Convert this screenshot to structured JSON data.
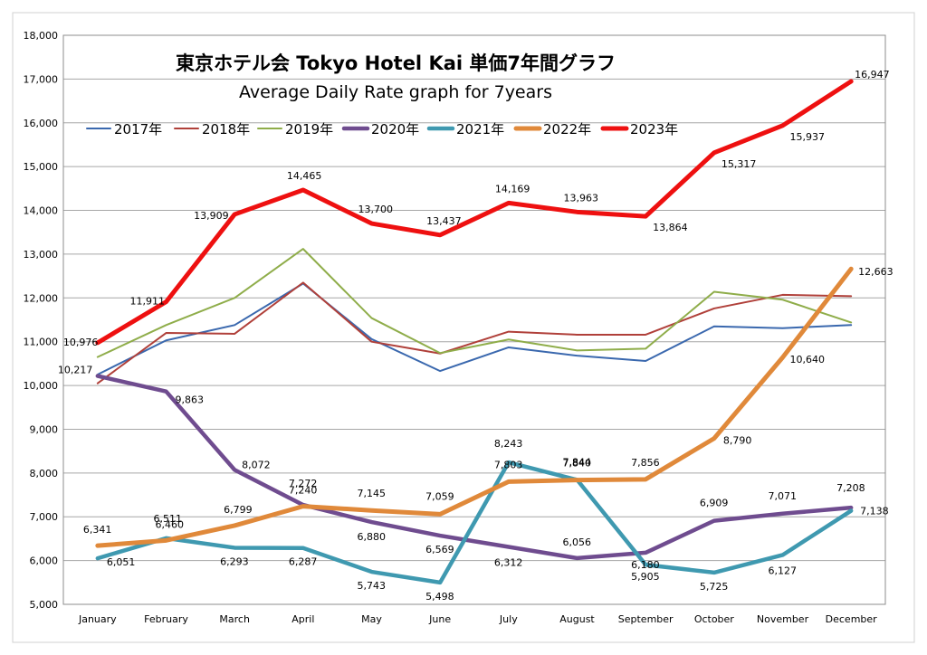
{
  "chart_data": {
    "type": "line",
    "title": "東京ホテル会 Tokyo Hotel Kai 単価7年間グラフ",
    "subtitle": "Average Daily Rate graph for 7years",
    "xlabel": "",
    "ylabel": "",
    "ylim": [
      5000,
      18000
    ],
    "ytick_step": 1000,
    "grid": true,
    "legend_position": "top",
    "categories": [
      "January",
      "February",
      "March",
      "April",
      "May",
      "June",
      "July",
      "August",
      "September",
      "October",
      "November",
      "December"
    ],
    "series": [
      {
        "name": "2017年",
        "color": "#3a68ae",
        "values": [
          10250,
          11030,
          11380,
          12330,
          11060,
          10330,
          10870,
          10680,
          10560,
          11350,
          11310,
          11380
        ]
      },
      {
        "name": "2018年",
        "color": "#b0403a",
        "values": [
          10050,
          11200,
          11180,
          12350,
          11000,
          10730,
          11230,
          11160,
          11160,
          11760,
          12070,
          12040
        ]
      },
      {
        "name": "2019年",
        "color": "#8fad4a",
        "values": [
          10650,
          11380,
          12000,
          13120,
          11540,
          10740,
          11050,
          10800,
          10840,
          12140,
          11960,
          11440
        ]
      },
      {
        "name": "2020年",
        "color": "#6f4c8f",
        "values": [
          10217,
          9863,
          8072,
          7272,
          6880,
          6569,
          6312,
          6056,
          6180,
          6909,
          7071,
          7208
        ]
      },
      {
        "name": "2021年",
        "color": "#3f99b0",
        "values": [
          6051,
          6511,
          6293,
          6287,
          5743,
          5498,
          8243,
          7844,
          5905,
          5725,
          6127,
          7138
        ]
      },
      {
        "name": "2022年",
        "color": "#e0893a",
        "values": [
          6341,
          6460,
          6799,
          7240,
          7145,
          7059,
          7803,
          7840,
          7856,
          8790,
          10640,
          12663
        ]
      },
      {
        "name": "2023年",
        "color": "#ee1010",
        "values": [
          10976,
          11911,
          13909,
          14465,
          13700,
          13437,
          14169,
          13963,
          13864,
          15317,
          15937,
          16947
        ]
      }
    ],
    "data_labels": {
      "2020年": [
        "10,217",
        "9,863",
        "8,072",
        "7,272",
        "6,880",
        "6,569",
        "6,312",
        "6,056",
        "6,180",
        "6,909",
        "7,071",
        "7,208"
      ],
      "2021年": [
        "6,051",
        "6,511",
        "6,293",
        "6,287",
        "5,743",
        "5,498",
        "8,243",
        "7,844",
        "5,905",
        "5,725",
        "6,127",
        "7,138"
      ],
      "2022年": [
        "6,341",
        "6,460",
        "6,799",
        "7,240",
        "7,145",
        "7,059",
        "7,803",
        "7,840",
        "7,856",
        "8,790",
        "10,640",
        "12,663"
      ],
      "2023年": [
        "10,976",
        "11,911",
        "13,909",
        "14,465",
        "13,700",
        "13,437",
        "14,169",
        "13,963",
        "13,864",
        "15,317",
        "15,937",
        "16,947"
      ]
    },
    "ytick_labels": [
      "5,000",
      "6,000",
      "7,000",
      "8,000",
      "9,000",
      "10,000",
      "11,000",
      "12,000",
      "13,000",
      "14,000",
      "15,000",
      "16,000",
      "17,000",
      "18,000"
    ]
  }
}
